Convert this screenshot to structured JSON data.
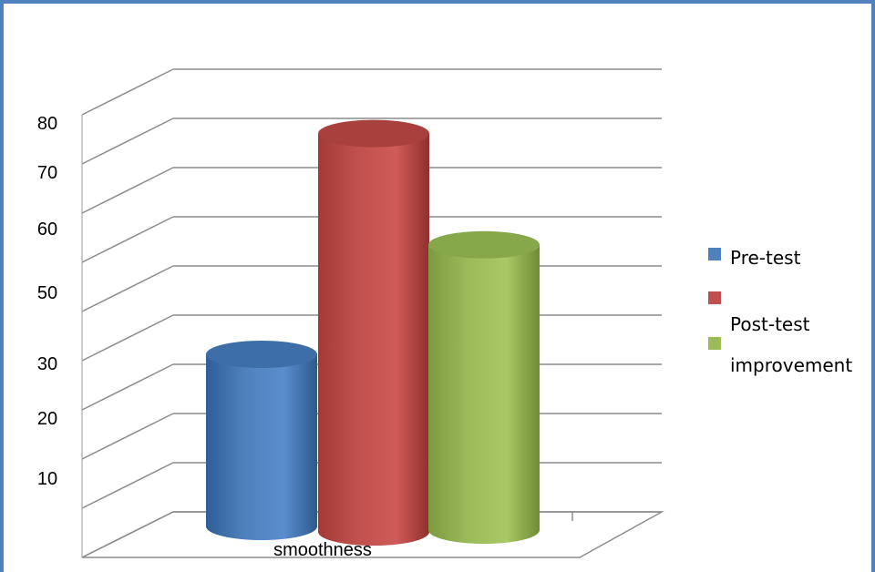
{
  "chart_data": {
    "type": "bar",
    "style": "3d-cylinder",
    "categories": [
      "smoothness"
    ],
    "y_tick_labels": [
      "10",
      "20",
      "30",
      "50",
      "60",
      "70",
      "80"
    ],
    "ylim": [
      0,
      90
    ],
    "grid": true,
    "legend_position": "right",
    "series": [
      {
        "name": "Pre-test",
        "values": [
          35
        ],
        "color": "#4f81bd"
      },
      {
        "name": "Post-test",
        "values": [
          81
        ],
        "color": "#c0504d"
      },
      {
        "name": "improvement",
        "values": [
          58
        ],
        "color": "#9bbb59"
      }
    ]
  }
}
